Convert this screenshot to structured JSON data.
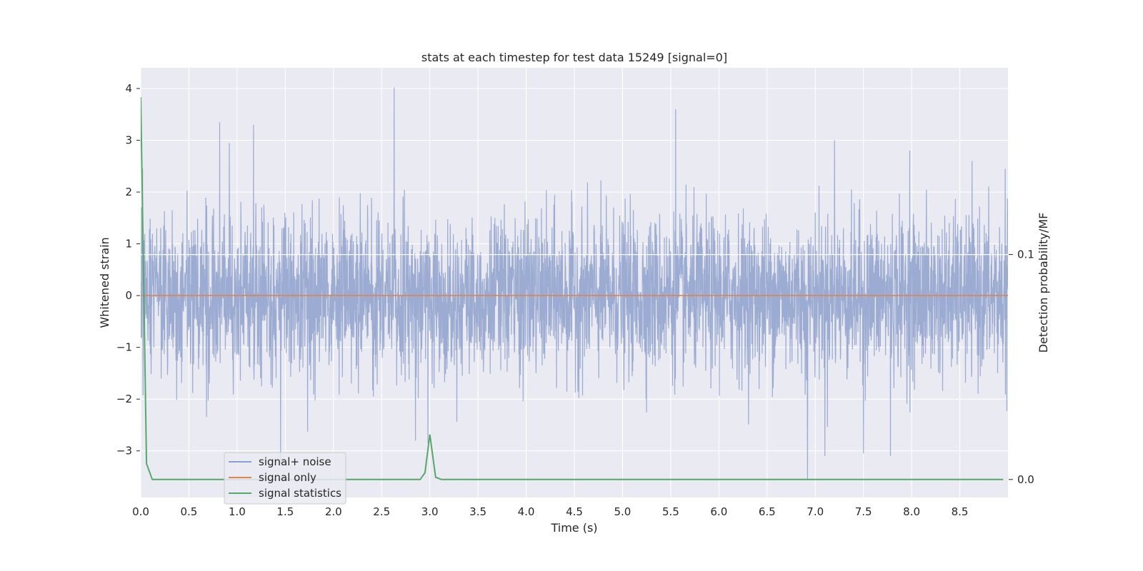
{
  "chart_data": {
    "type": "line",
    "title": "stats at each timestep for test data 15249 [signal=0]",
    "xlabel": "Time (s)",
    "ylabel": "Whitened strain",
    "ylabel_right": "Detection probability/MF",
    "xlim": [
      0.0,
      9.0
    ],
    "ylim": [
      -3.9,
      4.4
    ],
    "ylim_right": [
      -0.008,
      0.183
    ],
    "xticks": [
      "0.0",
      "0.5",
      "1.0",
      "1.5",
      "2.0",
      "2.5",
      "3.0",
      "3.5",
      "4.0",
      "4.5",
      "5.0",
      "5.5",
      "6.0",
      "6.5",
      "7.0",
      "7.5",
      "8.0",
      "8.5"
    ],
    "yticks": [
      "−3",
      "−2",
      "−1",
      "0",
      "1",
      "2",
      "3",
      "4"
    ],
    "yticks_right": [
      "0.0",
      "0.1"
    ],
    "grid": true,
    "legend_position": "lower-left",
    "background": "#eaeaf2",
    "series": [
      {
        "name": "signal+ noise",
        "color": "#8da0cb",
        "axis": "left",
        "kind": "noise",
        "sample_rate": 410,
        "sigma": 0.75,
        "spikes": [
          {
            "x": 0.02,
            "y": 2.45
          },
          {
            "x": 0.82,
            "y": 3.35
          },
          {
            "x": 0.92,
            "y": 2.95
          },
          {
            "x": 1.17,
            "y": 3.3
          },
          {
            "x": 1.45,
            "y": -3.25
          },
          {
            "x": 2.63,
            "y": 4.02
          },
          {
            "x": 2.85,
            "y": -2.8
          },
          {
            "x": 2.98,
            "y": -2.85
          },
          {
            "x": 5.55,
            "y": 3.6
          },
          {
            "x": 6.92,
            "y": -3.55
          },
          {
            "x": 7.1,
            "y": -3.1
          },
          {
            "x": 7.2,
            "y": 3.0
          },
          {
            "x": 7.5,
            "y": -3.05
          },
          {
            "x": 7.78,
            "y": -3.1
          },
          {
            "x": 7.98,
            "y": 2.8
          },
          {
            "x": 8.97,
            "y": 2.45
          }
        ]
      },
      {
        "name": "signal only",
        "color": "#dd8452",
        "axis": "left",
        "x": [
          0.0,
          9.0
        ],
        "y": [
          0.0,
          0.0
        ]
      },
      {
        "name": "signal statistics",
        "color": "#55a868",
        "axis": "right",
        "x": [
          0.0,
          0.06,
          0.12,
          0.2,
          2.9,
          2.95,
          3.0,
          3.06,
          3.12,
          3.3,
          8.95
        ],
        "y": [
          0.17,
          0.007,
          0.0,
          0.0,
          0.0,
          0.003,
          0.02,
          0.001,
          0.0,
          0.0,
          0.0
        ]
      }
    ],
    "reference_line": {
      "axis": "right",
      "y": 0.1,
      "color": "#ffffff"
    }
  }
}
